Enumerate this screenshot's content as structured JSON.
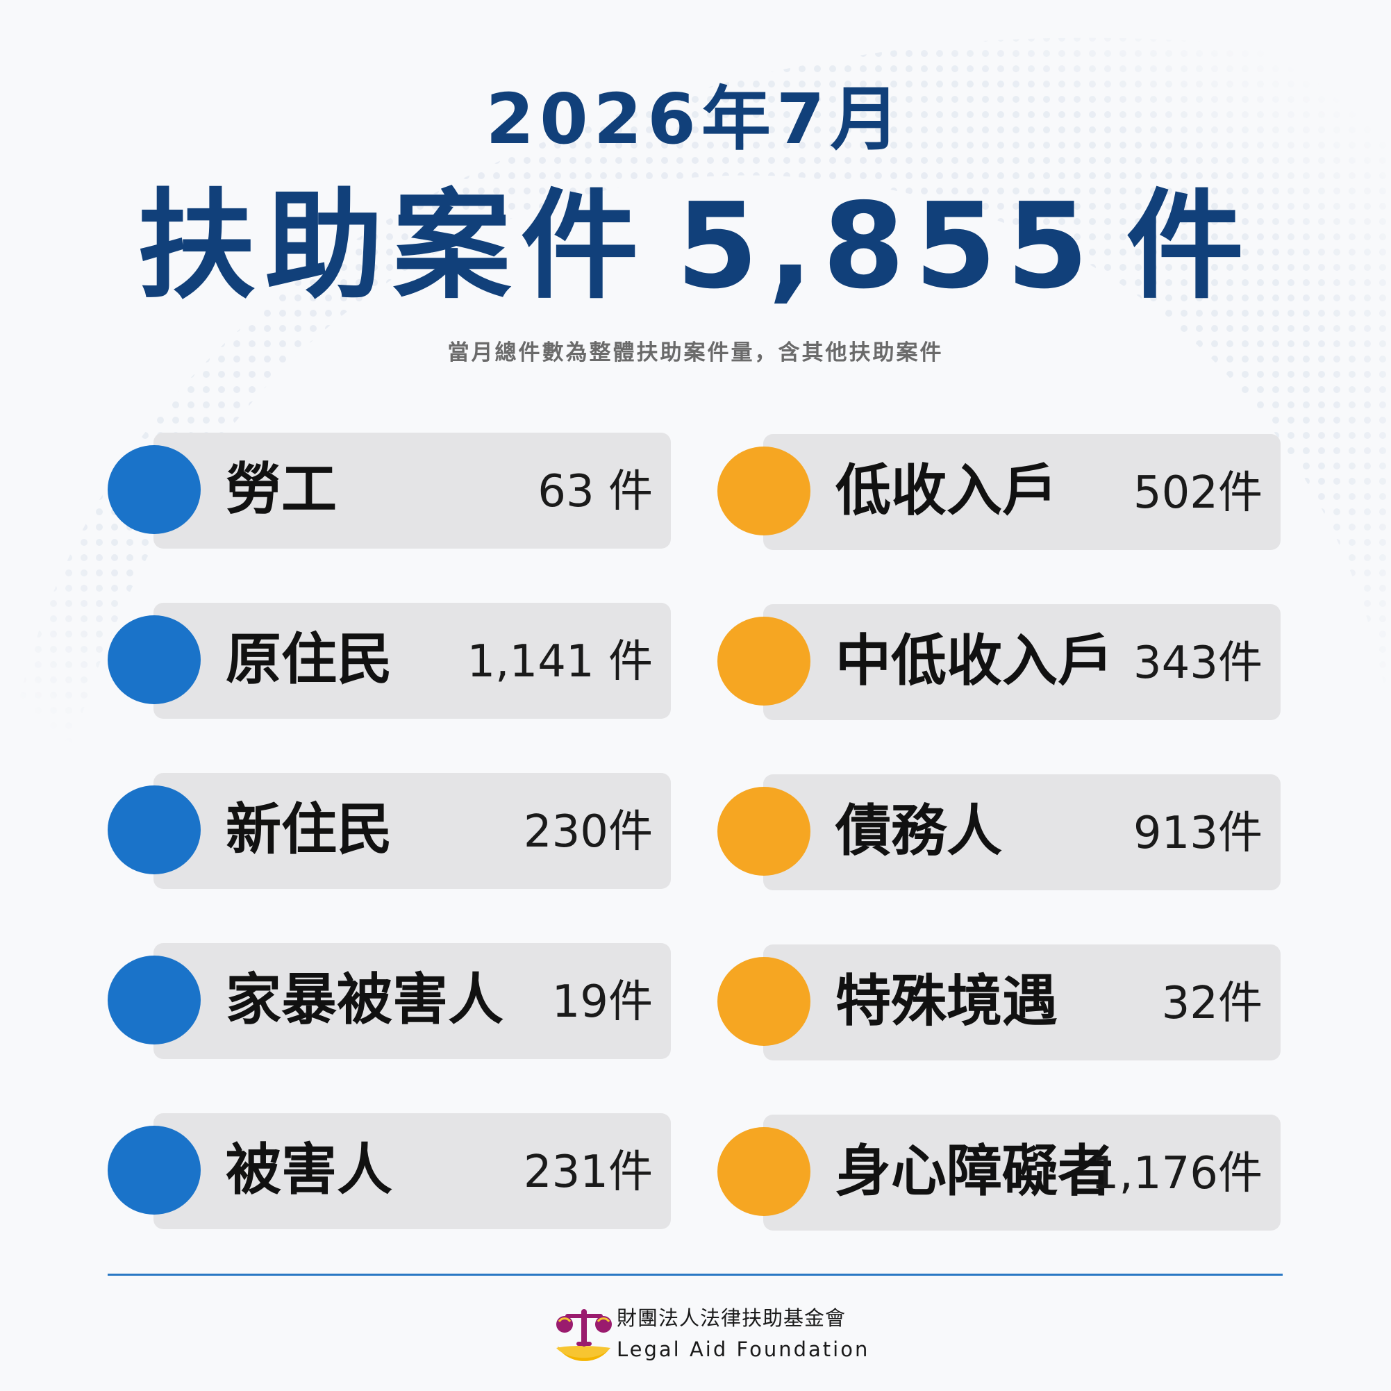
{
  "header": {
    "month": "2026年7月",
    "headline_prefix": "扶助案件",
    "total": "5,855",
    "unit": "件",
    "note": "當月總件數為整體扶助案件量，含其他扶助案件"
  },
  "colors": {
    "title": "#11407a",
    "blue_dot": "#1a73c9",
    "orange_dot": "#f6a622",
    "card": "#e4e4e6",
    "rule": "#2a78c4"
  },
  "left_categories": [
    {
      "label": "勞工",
      "value": "63 件"
    },
    {
      "label": "原住民",
      "value": "1,141 件"
    },
    {
      "label": "新住民",
      "value": "230件"
    },
    {
      "label": "家暴被害人",
      "value": "19件"
    },
    {
      "label": "被害人",
      "value": "231件"
    }
  ],
  "right_categories": [
    {
      "label": "低收入戶",
      "value": "502件"
    },
    {
      "label": "中低收入戶",
      "value": "343件"
    },
    {
      "label": "債務人",
      "value": "913件"
    },
    {
      "label": "特殊境遇",
      "value": "32件"
    },
    {
      "label": "身心障礙者",
      "value": "1,176件"
    }
  ],
  "footer": {
    "org_name_cn": "財團法人法律扶助基金會",
    "org_name_en": "Legal Aid Foundation",
    "logo_icon": "legal-aid-logo-icon"
  }
}
